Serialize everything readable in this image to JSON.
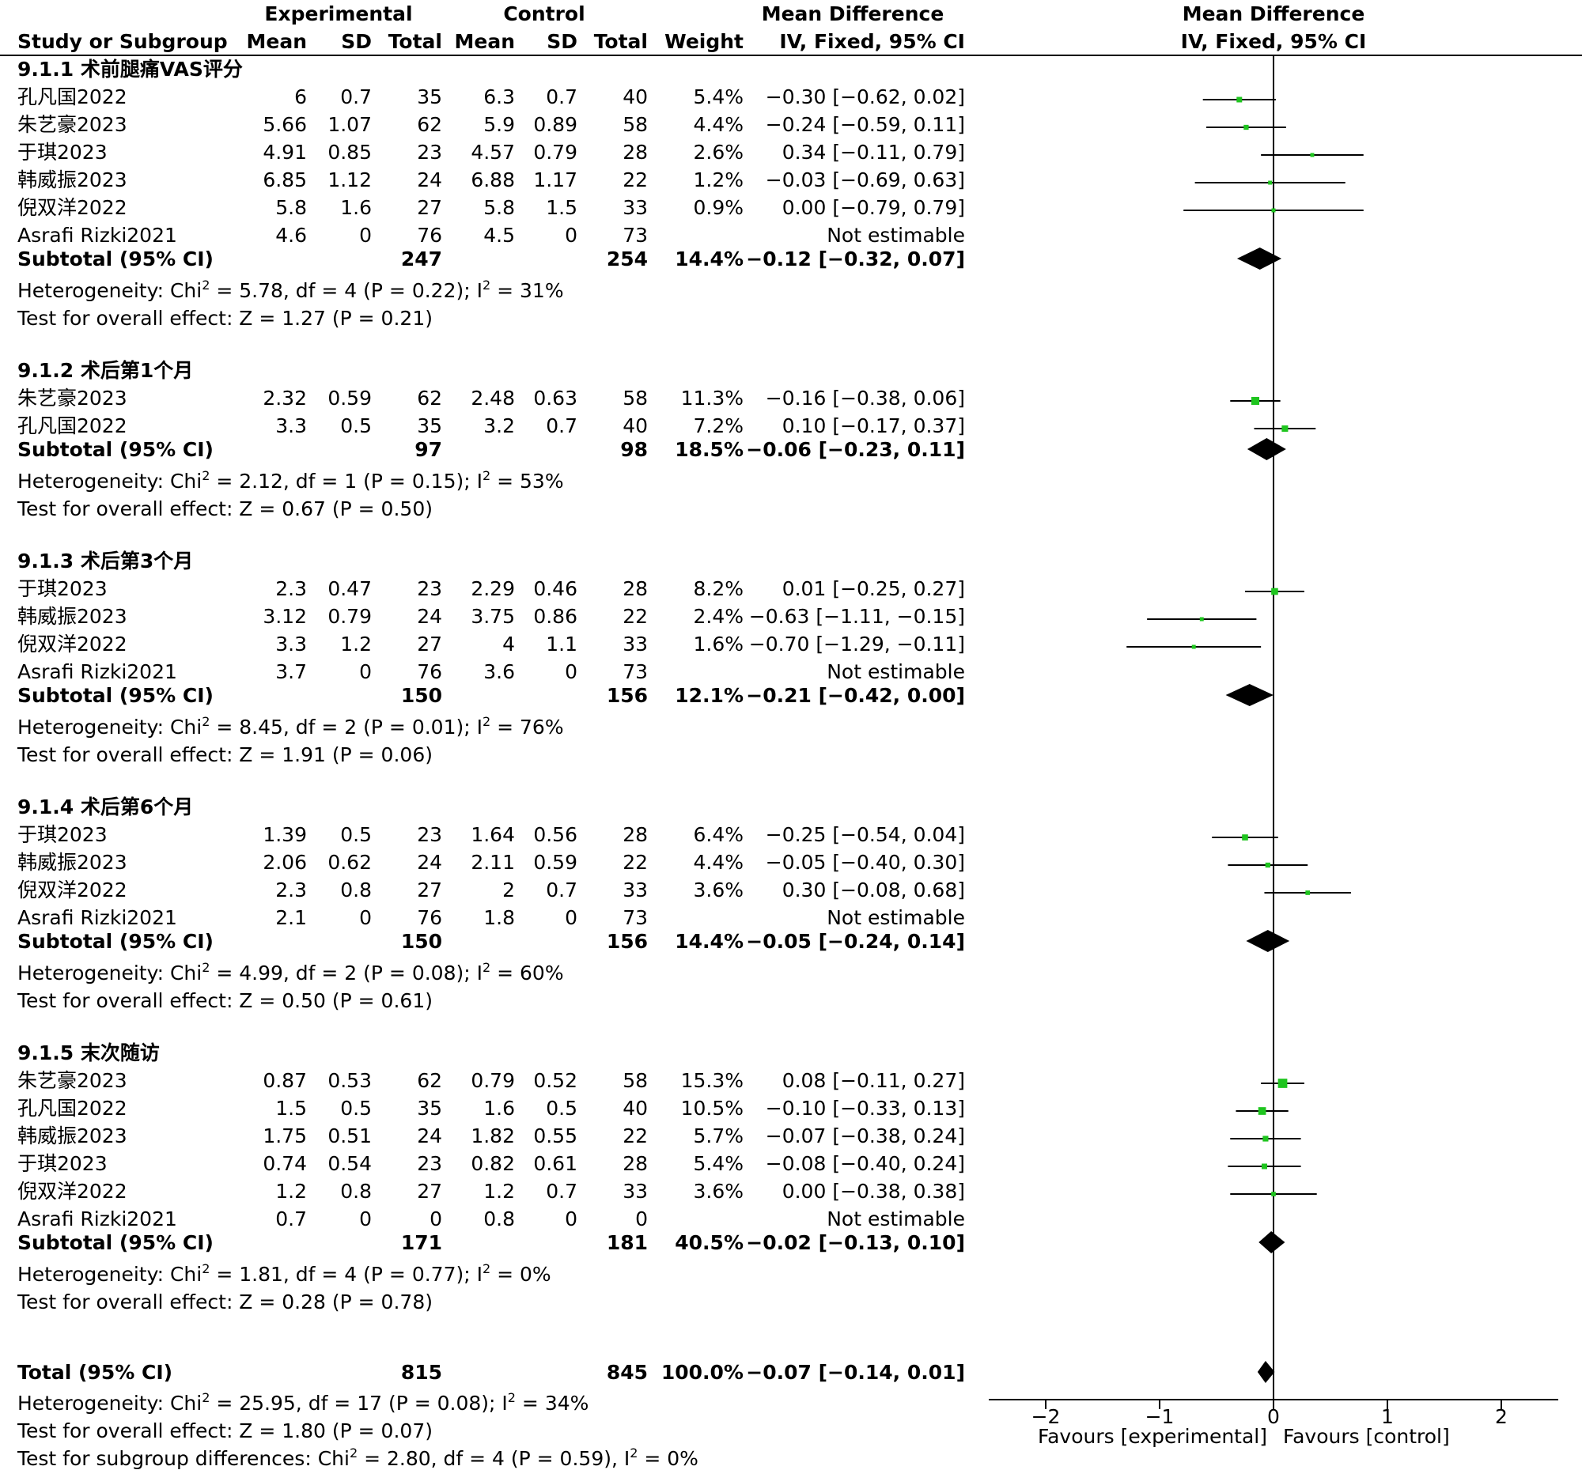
{
  "chart_data": {
    "type": "forest",
    "header": {
      "experimental": "Experimental",
      "control": "Control",
      "md_group": "Mean Difference",
      "study_col": "Study or Subgroup",
      "mean": "Mean",
      "sd": "SD",
      "total": "Total",
      "weight": "Weight",
      "md_method": "IV, Fixed, 95% CI",
      "plot_title": "Mean Difference",
      "plot_method": "IV, Fixed, 95% CI"
    },
    "subgroups": [
      {
        "title": "9.1.1 术前腿痛VAS评分",
        "studies": [
          {
            "name": "孔凡国2022",
            "e_mean": "6",
            "e_sd": "0.7",
            "e_n": "35",
            "c_mean": "6.3",
            "c_sd": "0.7",
            "c_n": "40",
            "weight": "5.4%",
            "ci_text": "−0.30 [−0.62, 0.02]",
            "md": -0.3,
            "lo": -0.62,
            "hi": 0.02,
            "w": 5.4
          },
          {
            "name": "朱艺豪2023",
            "e_mean": "5.66",
            "e_sd": "1.07",
            "e_n": "62",
            "c_mean": "5.9",
            "c_sd": "0.89",
            "c_n": "58",
            "weight": "4.4%",
            "ci_text": "−0.24 [−0.59, 0.11]",
            "md": -0.24,
            "lo": -0.59,
            "hi": 0.11,
            "w": 4.4
          },
          {
            "name": "于琪2023",
            "e_mean": "4.91",
            "e_sd": "0.85",
            "e_n": "23",
            "c_mean": "4.57",
            "c_sd": "0.79",
            "c_n": "28",
            "weight": "2.6%",
            "ci_text": "0.34 [−0.11, 0.79]",
            "md": 0.34,
            "lo": -0.11,
            "hi": 0.79,
            "w": 2.6
          },
          {
            "name": "韩威振2023",
            "e_mean": "6.85",
            "e_sd": "1.12",
            "e_n": "24",
            "c_mean": "6.88",
            "c_sd": "1.17",
            "c_n": "22",
            "weight": "1.2%",
            "ci_text": "−0.03 [−0.69, 0.63]",
            "md": -0.03,
            "lo": -0.69,
            "hi": 0.63,
            "w": 1.2
          },
          {
            "name": "倪双洋2022",
            "e_mean": "5.8",
            "e_sd": "1.6",
            "e_n": "27",
            "c_mean": "5.8",
            "c_sd": "1.5",
            "c_n": "33",
            "weight": "0.9%",
            "ci_text": "0.00 [−0.79, 0.79]",
            "md": 0.0,
            "lo": -0.79,
            "hi": 0.79,
            "w": 0.9
          },
          {
            "name": "Asrafi Rizki2021",
            "e_mean": "4.6",
            "e_sd": "0",
            "e_n": "76",
            "c_mean": "4.5",
            "c_sd": "0",
            "c_n": "73",
            "weight": "",
            "ci_text": "Not estimable",
            "md": null,
            "lo": null,
            "hi": null,
            "w": 0
          }
        ],
        "subtotal": {
          "label": "Subtotal (95% CI)",
          "e_n": "247",
          "c_n": "254",
          "weight": "14.4%",
          "ci_text": "−0.12 [−0.32, 0.07]",
          "md": -0.12,
          "lo": -0.32,
          "hi": 0.07
        },
        "het": {
          "pre": "Heterogeneity: Chi",
          "mid": " = 5.78, df = 4 (P = 0.22); I",
          "post": " = 31%"
        },
        "overall": "Test for overall effect: Z = 1.27 (P = 0.21)"
      },
      {
        "title": "9.1.2 术后第1个月",
        "studies": [
          {
            "name": "朱艺豪2023",
            "e_mean": "2.32",
            "e_sd": "0.59",
            "e_n": "62",
            "c_mean": "2.48",
            "c_sd": "0.63",
            "c_n": "58",
            "weight": "11.3%",
            "ci_text": "−0.16 [−0.38, 0.06]",
            "md": -0.16,
            "lo": -0.38,
            "hi": 0.06,
            "w": 11.3
          },
          {
            "name": "孔凡国2022",
            "e_mean": "3.3",
            "e_sd": "0.5",
            "e_n": "35",
            "c_mean": "3.2",
            "c_sd": "0.7",
            "c_n": "40",
            "weight": "7.2%",
            "ci_text": "0.10 [−0.17, 0.37]",
            "md": 0.1,
            "lo": -0.17,
            "hi": 0.37,
            "w": 7.2
          }
        ],
        "subtotal": {
          "label": "Subtotal (95% CI)",
          "e_n": "97",
          "c_n": "98",
          "weight": "18.5%",
          "ci_text": "−0.06 [−0.23, 0.11]",
          "md": -0.06,
          "lo": -0.23,
          "hi": 0.11
        },
        "het": {
          "pre": "Heterogeneity: Chi",
          "mid": " = 2.12, df = 1 (P = 0.15); I",
          "post": " = 53%"
        },
        "overall": "Test for overall effect: Z = 0.67 (P = 0.50)"
      },
      {
        "title": "9.1.3 术后第3个月",
        "studies": [
          {
            "name": "于琪2023",
            "e_mean": "2.3",
            "e_sd": "0.47",
            "e_n": "23",
            "c_mean": "2.29",
            "c_sd": "0.46",
            "c_n": "28",
            "weight": "8.2%",
            "ci_text": "0.01 [−0.25, 0.27]",
            "md": 0.01,
            "lo": -0.25,
            "hi": 0.27,
            "w": 8.2
          },
          {
            "name": "韩威振2023",
            "e_mean": "3.12",
            "e_sd": "0.79",
            "e_n": "24",
            "c_mean": "3.75",
            "c_sd": "0.86",
            "c_n": "22",
            "weight": "2.4%",
            "ci_text": "−0.63 [−1.11, −0.15]",
            "md": -0.63,
            "lo": -1.11,
            "hi": -0.15,
            "w": 2.4
          },
          {
            "name": "倪双洋2022",
            "e_mean": "3.3",
            "e_sd": "1.2",
            "e_n": "27",
            "c_mean": "4",
            "c_sd": "1.1",
            "c_n": "33",
            "weight": "1.6%",
            "ci_text": "−0.70 [−1.29, −0.11]",
            "md": -0.7,
            "lo": -1.29,
            "hi": -0.11,
            "w": 1.6
          },
          {
            "name": "Asrafi Rizki2021",
            "e_mean": "3.7",
            "e_sd": "0",
            "e_n": "76",
            "c_mean": "3.6",
            "c_sd": "0",
            "c_n": "73",
            "weight": "",
            "ci_text": "Not estimable",
            "md": null,
            "lo": null,
            "hi": null,
            "w": 0
          }
        ],
        "subtotal": {
          "label": "Subtotal (95% CI)",
          "e_n": "150",
          "c_n": "156",
          "weight": "12.1%",
          "ci_text": "−0.21 [−0.42, 0.00]",
          "md": -0.21,
          "lo": -0.42,
          "hi": 0.0
        },
        "het": {
          "pre": "Heterogeneity: Chi",
          "mid": " = 8.45, df = 2 (P = 0.01); I",
          "post": " = 76%"
        },
        "overall": "Test for overall effect: Z = 1.91 (P = 0.06)"
      },
      {
        "title": "9.1.4 术后第6个月",
        "studies": [
          {
            "name": "于琪2023",
            "e_mean": "1.39",
            "e_sd": "0.5",
            "e_n": "23",
            "c_mean": "1.64",
            "c_sd": "0.56",
            "c_n": "28",
            "weight": "6.4%",
            "ci_text": "−0.25 [−0.54, 0.04]",
            "md": -0.25,
            "lo": -0.54,
            "hi": 0.04,
            "w": 6.4
          },
          {
            "name": "韩威振2023",
            "e_mean": "2.06",
            "e_sd": "0.62",
            "e_n": "24",
            "c_mean": "2.11",
            "c_sd": "0.59",
            "c_n": "22",
            "weight": "4.4%",
            "ci_text": "−0.05 [−0.40, 0.30]",
            "md": -0.05,
            "lo": -0.4,
            "hi": 0.3,
            "w": 4.4
          },
          {
            "name": "倪双洋2022",
            "e_mean": "2.3",
            "e_sd": "0.8",
            "e_n": "27",
            "c_mean": "2",
            "c_sd": "0.7",
            "c_n": "33",
            "weight": "3.6%",
            "ci_text": "0.30 [−0.08, 0.68]",
            "md": 0.3,
            "lo": -0.08,
            "hi": 0.68,
            "w": 3.6
          },
          {
            "name": "Asrafi Rizki2021",
            "e_mean": "2.1",
            "e_sd": "0",
            "e_n": "76",
            "c_mean": "1.8",
            "c_sd": "0",
            "c_n": "73",
            "weight": "",
            "ci_text": "Not estimable",
            "md": null,
            "lo": null,
            "hi": null,
            "w": 0
          }
        ],
        "subtotal": {
          "label": "Subtotal (95% CI)",
          "e_n": "150",
          "c_n": "156",
          "weight": "14.4%",
          "ci_text": "−0.05 [−0.24, 0.14]",
          "md": -0.05,
          "lo": -0.24,
          "hi": 0.14
        },
        "het": {
          "pre": "Heterogeneity: Chi",
          "mid": " = 4.99, df = 2 (P = 0.08); I",
          "post": " = 60%"
        },
        "overall": "Test for overall effect: Z = 0.50 (P = 0.61)"
      },
      {
        "title": "9.1.5 末次随访",
        "studies": [
          {
            "name": "朱艺豪2023",
            "e_mean": "0.87",
            "e_sd": "0.53",
            "e_n": "62",
            "c_mean": "0.79",
            "c_sd": "0.52",
            "c_n": "58",
            "weight": "15.3%",
            "ci_text": "0.08 [−0.11, 0.27]",
            "md": 0.08,
            "lo": -0.11,
            "hi": 0.27,
            "w": 15.3
          },
          {
            "name": "孔凡国2022",
            "e_mean": "1.5",
            "e_sd": "0.5",
            "e_n": "35",
            "c_mean": "1.6",
            "c_sd": "0.5",
            "c_n": "40",
            "weight": "10.5%",
            "ci_text": "−0.10 [−0.33, 0.13]",
            "md": -0.1,
            "lo": -0.33,
            "hi": 0.13,
            "w": 10.5
          },
          {
            "name": "韩威振2023",
            "e_mean": "1.75",
            "e_sd": "0.51",
            "e_n": "24",
            "c_mean": "1.82",
            "c_sd": "0.55",
            "c_n": "22",
            "weight": "5.7%",
            "ci_text": "−0.07 [−0.38, 0.24]",
            "md": -0.07,
            "lo": -0.38,
            "hi": 0.24,
            "w": 5.7
          },
          {
            "name": "于琪2023",
            "e_mean": "0.74",
            "e_sd": "0.54",
            "e_n": "23",
            "c_mean": "0.82",
            "c_sd": "0.61",
            "c_n": "28",
            "weight": "5.4%",
            "ci_text": "−0.08 [−0.40, 0.24]",
            "md": -0.08,
            "lo": -0.4,
            "hi": 0.24,
            "w": 5.4
          },
          {
            "name": "倪双洋2022",
            "e_mean": "1.2",
            "e_sd": "0.8",
            "e_n": "27",
            "c_mean": "1.2",
            "c_sd": "0.7",
            "c_n": "33",
            "weight": "3.6%",
            "ci_text": "0.00 [−0.38, 0.38]",
            "md": 0.0,
            "lo": -0.38,
            "hi": 0.38,
            "w": 3.6
          },
          {
            "name": "Asrafi Rizki2021",
            "e_mean": "0.7",
            "e_sd": "0",
            "e_n": "0",
            "c_mean": "0.8",
            "c_sd": "0",
            "c_n": "0",
            "weight": "",
            "ci_text": "Not estimable",
            "md": null,
            "lo": null,
            "hi": null,
            "w": 0
          }
        ],
        "subtotal": {
          "label": "Subtotal (95% CI)",
          "e_n": "171",
          "c_n": "181",
          "weight": "40.5%",
          "ci_text": "−0.02 [−0.13, 0.10]",
          "md": -0.02,
          "lo": -0.13,
          "hi": 0.1
        },
        "het": {
          "pre": "Heterogeneity: Chi",
          "mid": " = 1.81, df = 4 (P = 0.77); I",
          "post": " = 0%"
        },
        "overall": "Test for overall effect: Z = 0.28 (P = 0.78)"
      }
    ],
    "total": {
      "label": "Total (95% CI)",
      "e_n": "815",
      "c_n": "845",
      "weight": "100.0%",
      "ci_text": "−0.07 [−0.14, 0.01]",
      "md": -0.07,
      "lo": -0.14,
      "hi": 0.01
    },
    "total_het": {
      "pre": "Heterogeneity: Chi",
      "mid": " = 25.95, df = 17 (P = 0.08); I",
      "post": " = 34%"
    },
    "total_overall": "Test for overall effect: Z = 1.80 (P = 0.07)",
    "subgroup_diff": {
      "pre": "Test for subgroup differences: Chi",
      "mid": " = 2.80, df = 4 (P = 0.59), I",
      "post": " = 0%"
    },
    "superscript": "2",
    "axis": {
      "xlim": [
        -2.5,
        2.5
      ],
      "ticks": [
        -2,
        -1,
        0,
        1,
        2
      ],
      "tick_labels": [
        "−2",
        "−1",
        "0",
        "1",
        "2"
      ],
      "left_label": "Favours [experimental]",
      "right_label": "Favours [control]"
    },
    "colors": {
      "square": "#1fc51f",
      "diamond": "#000000",
      "line": "#000000"
    }
  }
}
